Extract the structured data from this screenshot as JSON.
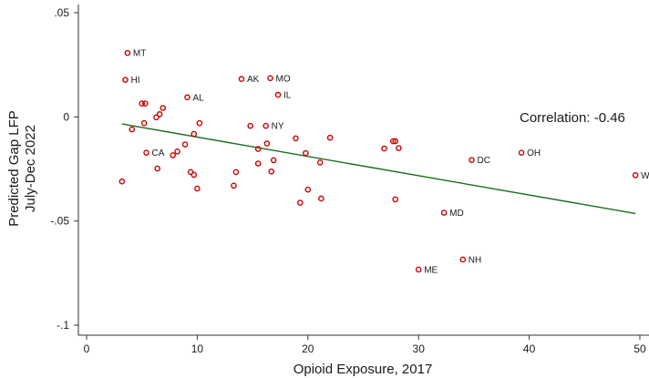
{
  "chart_data": {
    "type": "scatter",
    "xlabel": "Opioid Exposure, 2017",
    "ylabel_lines": [
      "Predicted Gap LFP",
      "July-Dec 2022"
    ],
    "xlim": [
      0,
      50
    ],
    "ylim": [
      -0.1,
      0.05
    ],
    "x_ticks": [
      0,
      10,
      20,
      30,
      40,
      50
    ],
    "x_tick_labels": [
      "0",
      "10",
      "20",
      "30",
      "40",
      "50"
    ],
    "y_ticks": [
      0.05,
      0,
      -0.05,
      -0.1
    ],
    "y_tick_labels": [
      ".05",
      "0",
      "-.05",
      "-.1"
    ],
    "grid": false,
    "annotation": "Correlation: -0.46",
    "colors": {
      "point": "#cc0000",
      "fit_line": "#1a6e1a",
      "axis": "#333333"
    },
    "fit_line": {
      "x": [
        3.2,
        49.6
      ],
      "y": [
        -0.0034,
        -0.0464
      ]
    },
    "points": [
      {
        "x": 3.7,
        "y": 0.0307,
        "label": "MT"
      },
      {
        "x": 3.5,
        "y": 0.0178,
        "label": "HI"
      },
      {
        "x": 14.0,
        "y": 0.0182,
        "label": "AK"
      },
      {
        "x": 16.6,
        "y": 0.0186,
        "label": "MO"
      },
      {
        "x": 9.1,
        "y": 0.0094,
        "label": "AL"
      },
      {
        "x": 17.3,
        "y": 0.0106,
        "label": "IL"
      },
      {
        "x": 16.2,
        "y": -0.0043,
        "label": "NY"
      },
      {
        "x": 5.4,
        "y": -0.0172,
        "label": "CA"
      },
      {
        "x": 34.8,
        "y": -0.0207,
        "label": "DC"
      },
      {
        "x": 39.3,
        "y": -0.0172,
        "label": "OH"
      },
      {
        "x": 49.6,
        "y": -0.028,
        "label": "W"
      },
      {
        "x": 32.3,
        "y": -0.046,
        "label": "MD"
      },
      {
        "x": 34.0,
        "y": -0.0685,
        "label": "NH"
      },
      {
        "x": 30.0,
        "y": -0.0733,
        "label": "ME"
      },
      {
        "x": 5.0,
        "y": 0.0064
      },
      {
        "x": 5.3,
        "y": 0.0064
      },
      {
        "x": 6.9,
        "y": 0.0043
      },
      {
        "x": 6.6,
        "y": 0.0013
      },
      {
        "x": 6.3,
        "y": -0.0002
      },
      {
        "x": 5.2,
        "y": -0.003
      },
      {
        "x": 4.1,
        "y": -0.006
      },
      {
        "x": 10.2,
        "y": -0.003
      },
      {
        "x": 9.7,
        "y": -0.0082
      },
      {
        "x": 14.8,
        "y": -0.0043
      },
      {
        "x": 8.9,
        "y": -0.0132
      },
      {
        "x": 8.2,
        "y": -0.0166
      },
      {
        "x": 7.8,
        "y": -0.0184
      },
      {
        "x": 6.4,
        "y": -0.0248
      },
      {
        "x": 3.2,
        "y": -0.031
      },
      {
        "x": 9.4,
        "y": -0.0265
      },
      {
        "x": 9.7,
        "y": -0.0278
      },
      {
        "x": 10.0,
        "y": -0.0344
      },
      {
        "x": 13.5,
        "y": -0.0265
      },
      {
        "x": 13.3,
        "y": -0.033
      },
      {
        "x": 15.5,
        "y": -0.0154
      },
      {
        "x": 16.3,
        "y": -0.0128
      },
      {
        "x": 15.5,
        "y": -0.0224
      },
      {
        "x": 16.9,
        "y": -0.0208
      },
      {
        "x": 16.7,
        "y": -0.0262
      },
      {
        "x": 18.9,
        "y": -0.0103
      },
      {
        "x": 19.8,
        "y": -0.0174
      },
      {
        "x": 19.3,
        "y": -0.0412
      },
      {
        "x": 20.0,
        "y": -0.0349
      },
      {
        "x": 21.1,
        "y": -0.0219
      },
      {
        "x": 21.2,
        "y": -0.0392
      },
      {
        "x": 22.0,
        "y": -0.01
      },
      {
        "x": 26.9,
        "y": -0.0152
      },
      {
        "x": 27.7,
        "y": -0.0117
      },
      {
        "x": 27.9,
        "y": -0.0117
      },
      {
        "x": 28.2,
        "y": -0.015
      },
      {
        "x": 27.9,
        "y": -0.0396
      }
    ]
  }
}
